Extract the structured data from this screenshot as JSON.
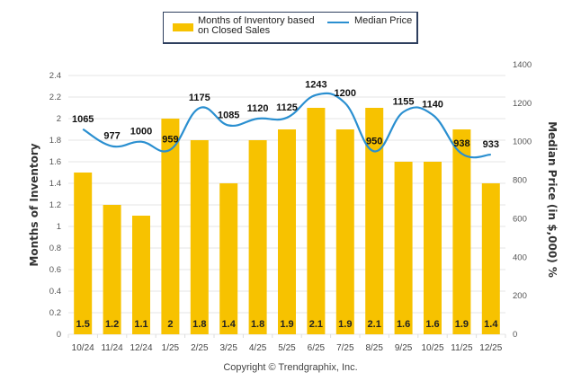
{
  "chart_data": {
    "type": "bar",
    "title": "",
    "categories": [
      "10/24",
      "11/24",
      "12/24",
      "1/25",
      "2/25",
      "3/25",
      "4/25",
      "5/25",
      "6/25",
      "7/25",
      "8/25",
      "9/25",
      "10/25",
      "11/25",
      "12/25"
    ],
    "series": [
      {
        "name": "Months of Inventory based on Closed Sales",
        "type": "bar",
        "axis": "left",
        "color": "#f7c200",
        "values": [
          1.5,
          1.2,
          1.1,
          2,
          1.8,
          1.4,
          1.8,
          1.9,
          2.1,
          1.9,
          2.1,
          1.6,
          1.6,
          1.9,
          1.4
        ]
      },
      {
        "name": "Median Price",
        "type": "line",
        "axis": "right",
        "color": "#2a8fd0",
        "values": [
          1065,
          977,
          1000,
          959,
          1175,
          1085,
          1120,
          1125,
          1243,
          1200,
          950,
          1155,
          1140,
          938,
          933
        ]
      }
    ],
    "ylabel": "Months of Inventory",
    "ylim": [
      0,
      2.4
    ],
    "yticks": [
      "0",
      "0.2",
      "0.4",
      "0.6",
      "0.8",
      "1",
      "1.2",
      "1.4",
      "1.6",
      "1.8",
      "2",
      "2.2",
      "2.4"
    ],
    "y2label": "Median Price (in $,000) %",
    "y2lim": [
      0,
      1400
    ],
    "y2ticks": [
      "0",
      "200",
      "400",
      "600",
      "800",
      "1000",
      "1200",
      "1400"
    ],
    "xlabel": "",
    "grid": true,
    "legend": "top-center"
  },
  "legend": {
    "bar_label": "Months of Inventory based on Closed Sales",
    "line_label": "Median Price"
  },
  "footer": {
    "copyright": "Copyright © Trendgraphix, Inc."
  }
}
